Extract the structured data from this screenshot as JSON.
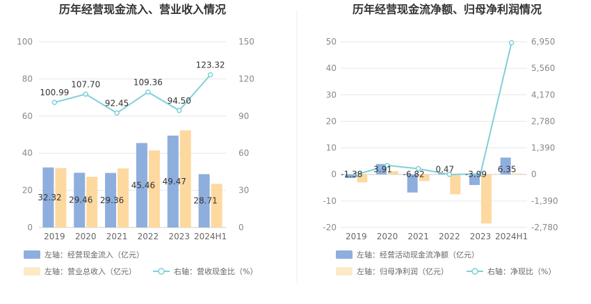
{
  "chart_data": [
    {
      "type": "bar",
      "title": "历年经营现金流入、营业收入情况",
      "categories": [
        "2019",
        "2020",
        "2021",
        "2022",
        "2023",
        "2024H1"
      ],
      "left_axis": {
        "min": 0,
        "max": 100,
        "ticks": [
          "0",
          "20",
          "40",
          "60",
          "80",
          "100"
        ]
      },
      "right_axis": {
        "min": 0,
        "max": 150,
        "ticks": [
          "0",
          "30",
          "60",
          "90",
          "120",
          "150"
        ]
      },
      "series": [
        {
          "name": "左轴：经营现金流入（亿元）",
          "axis": "left",
          "kind": "bar",
          "color": "#8eaedd",
          "values": [
            32.32,
            29.46,
            29.36,
            45.46,
            49.47,
            28.71
          ],
          "labels": [
            "32.32",
            "29.46",
            "29.36",
            "45.46",
            "49.47",
            "28.71"
          ]
        },
        {
          "name": "左轴：营业总收入（亿元）",
          "axis": "left",
          "kind": "bar",
          "color": "#fdd9a0",
          "values": [
            32.0,
            27.3,
            31.8,
            41.5,
            52.3,
            23.5
          ]
        },
        {
          "name": "右轴：营收现金比（%）",
          "axis": "right",
          "kind": "line",
          "color": "#7fd0d9",
          "values": [
            100.99,
            107.7,
            92.45,
            109.36,
            94.5,
            123.32
          ],
          "labels": [
            "100.99",
            "107.70",
            "92.45",
            "109.36",
            "94.50",
            "123.32"
          ]
        }
      ],
      "legend_position": "bottom",
      "grid": true
    },
    {
      "type": "bar",
      "title": "历年经营现金流净额、归母净利润情况",
      "categories": [
        "2019",
        "2020",
        "2021",
        "2022",
        "2023",
        "2024H1"
      ],
      "left_axis": {
        "min": -20,
        "max": 50,
        "ticks": [
          "-20",
          "-10",
          "0",
          "10",
          "20",
          "30",
          "40",
          "50"
        ]
      },
      "right_axis": {
        "min": -2780,
        "max": 6950,
        "ticks": [
          "-2,780",
          "-1,390",
          "0",
          "1,390",
          "2,780",
          "4,170",
          "5,560",
          "6,950"
        ]
      },
      "series": [
        {
          "name": "左轴：经营活动现金流净额（亿元）",
          "axis": "left",
          "kind": "bar",
          "color": "#8eaedd",
          "values": [
            -1.38,
            3.91,
            -6.82,
            0.47,
            -3.99,
            6.35
          ],
          "labels": [
            "-1.38",
            "3.91",
            "-6.82",
            "0.47",
            "-3.99",
            "6.35"
          ]
        },
        {
          "name": "左轴：归母净利润（亿元）",
          "axis": "left",
          "kind": "bar",
          "color": "#fdd9a0",
          "values": [
            -3.0,
            1.2,
            -2.5,
            -7.5,
            -18.5,
            0.3
          ]
        },
        {
          "name": "右轴：净现比（%）",
          "axis": "right",
          "kind": "line",
          "color": "#7fd0d9",
          "values": [
            -20,
            470,
            300,
            0,
            20,
            6900
          ]
        }
      ],
      "legend_position": "bottom",
      "grid": true
    }
  ]
}
